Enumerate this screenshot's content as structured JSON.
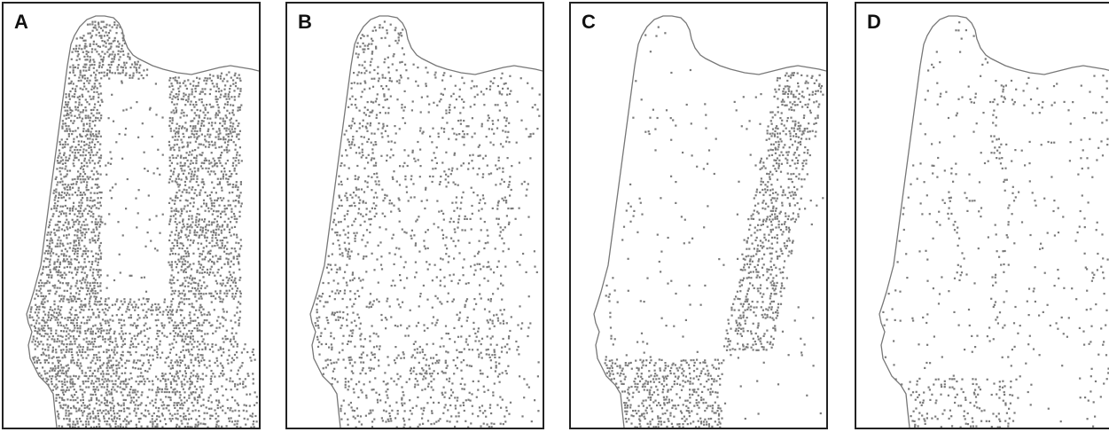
{
  "figure": {
    "panels": [
      {
        "id": "A",
        "label": "A",
        "pattern": "dense-coastal-and-inland"
      },
      {
        "id": "B",
        "label": "B",
        "pattern": "sparse-scattered"
      },
      {
        "id": "C",
        "label": "C",
        "pattern": "eastern-ridge-and-southern"
      },
      {
        "id": "D",
        "label": "D",
        "pattern": "very-sparse-linear"
      }
    ],
    "colors": {
      "coastline": "#777777",
      "points": "#7a7a7a",
      "background": "#ffffff",
      "frame": "#222222"
    }
  }
}
